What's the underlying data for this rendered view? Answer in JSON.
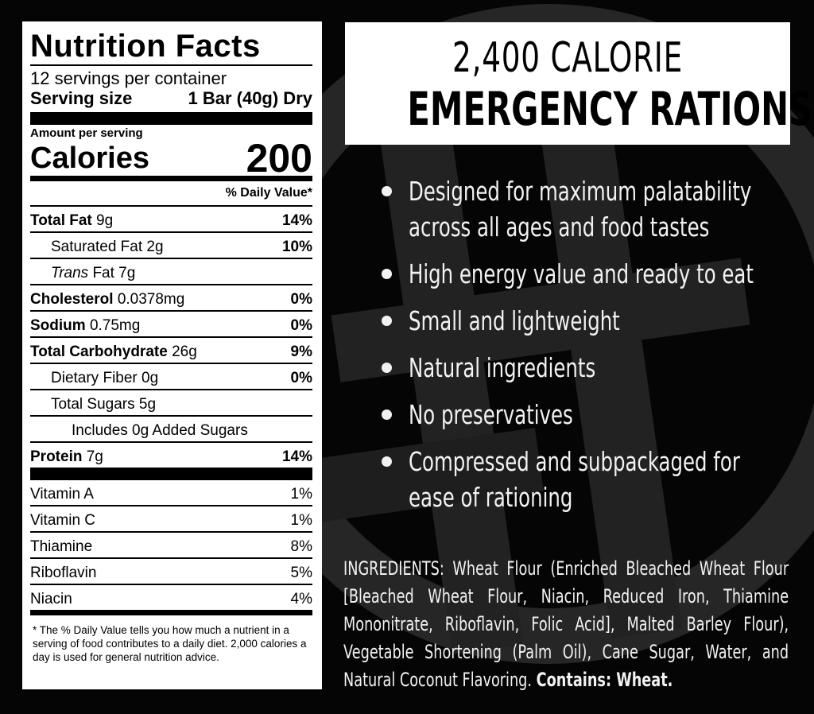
{
  "nutrition": {
    "title": "Nutrition Facts",
    "servings_per_container": "12 servings per container",
    "serving_size_label": "Serving size",
    "serving_size_value": "1 Bar (40g) Dry",
    "amount_per_serving": "Amount per serving",
    "calories_label": "Calories",
    "calories_value": "200",
    "dv_header": "% Daily Value*",
    "rows": {
      "total_fat": {
        "label": "Total Fat",
        "amount": "9g",
        "pct": "14%"
      },
      "saturated_fat": {
        "label": "Saturated Fat 2g",
        "pct": "10%"
      },
      "trans_fat": {
        "label_italic": "Trans",
        "label_rest": " Fat 7g"
      },
      "cholesterol": {
        "label": "Cholesterol",
        "amount": "0.0378mg",
        "pct": "0%"
      },
      "sodium": {
        "label": "Sodium",
        "amount": "0.75mg",
        "pct": "0%"
      },
      "total_carb": {
        "label": "Total Carbohydrate",
        "amount": "26g",
        "pct": "9%"
      },
      "dietary_fiber": {
        "label": "Dietary Fiber 0g",
        "pct": "0%"
      },
      "total_sugars": {
        "label": "Total Sugars 5g"
      },
      "added_sugars": {
        "label": "Includes 0g Added Sugars"
      },
      "protein": {
        "label": "Protein",
        "amount": "7g",
        "pct": "14%"
      }
    },
    "vitamins": [
      {
        "name": "Vitamin A",
        "pct": "1%"
      },
      {
        "name": "Vitamin C",
        "pct": "1%"
      },
      {
        "name": "Thiamine",
        "pct": "8%"
      },
      {
        "name": "Riboflavin",
        "pct": "5%"
      },
      {
        "name": "Niacin",
        "pct": "4%"
      }
    ],
    "footnote": "* The % Daily Value tells you how much a nutrient in a serving of food contributes to a daily diet. 2,000 calories a day is used for general nutrition advice."
  },
  "headline": {
    "line1": "2,400 CALORIE",
    "line2": "EMERGENCY RATIONS"
  },
  "features": [
    "Designed for maximum palatability across all ages and food tastes",
    "High energy value and ready to eat",
    "Small and lightweight",
    "Natural ingredients",
    "No preservatives",
    "Compressed and subpackaged for ease of rationing"
  ],
  "ingredients": {
    "text": "INGREDIENTS: Wheat Flour (Enriched Bleached Wheat Flour [Bleached Wheat Flour, Niacin, Reduced Iron, Thiamine Mononitrate, Riboflavin, Folic Acid], Malted Barley Flour), Vegetable Shortening (Palm Oil), Cane Sugar, Water, and Natural Coconut Flavoring.",
    "contains": "Contains: Wheat."
  },
  "colors": {
    "background": "#050505",
    "panel": "#ffffff",
    "text_light": "#f2f2f2",
    "watermark": "#2a2a2a"
  },
  "icons": [
    "background-logo-watermark",
    "bullet-dot"
  ]
}
